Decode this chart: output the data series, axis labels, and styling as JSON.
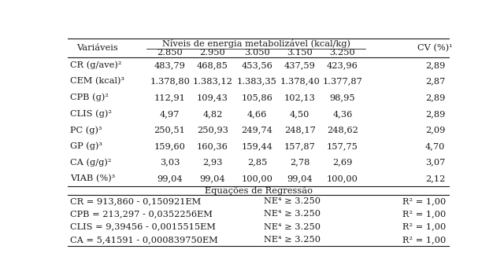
{
  "title_header": "Níveis de energia metabolizável (kcal/kg)",
  "col_header_1": "Variáveis",
  "col_header_cv": "CV (%)¹",
  "energy_levels": [
    "2.850",
    "2.950",
    "3.050",
    "3.150",
    "3.250"
  ],
  "variables": [
    "CR (g/ave)²",
    "CEM (kcal)³",
    "CPB (g)²",
    "CLIS (g)²",
    "PC (g)³",
    "GP (g)³",
    "CA (g/g)²",
    "VIAB (%)³"
  ],
  "data": [
    [
      "483,79",
      "468,85",
      "453,56",
      "437,59",
      "423,96",
      "2,89"
    ],
    [
      "1.378,80",
      "1.383,12",
      "1.383,35",
      "1.378,40",
      "1.377,87",
      "2,87"
    ],
    [
      "112,91",
      "109,43",
      "105,86",
      "102,13",
      "98,95",
      "2,89"
    ],
    [
      "4,97",
      "4,82",
      "4,66",
      "4,50",
      "4,36",
      "2,89"
    ],
    [
      "250,51",
      "250,93",
      "249,74",
      "248,17",
      "248,62",
      "2,09"
    ],
    [
      "159,60",
      "160,36",
      "159,44",
      "157,87",
      "157,75",
      "4,70"
    ],
    [
      "3,03",
      "2,93",
      "2,85",
      "2,78",
      "2,69",
      "3,07"
    ],
    [
      "99,04",
      "99,04",
      "100,00",
      "99,04",
      "100,00",
      "2,12"
    ]
  ],
  "regression_title": "Equações de Regressão",
  "regression_rows": [
    [
      "CR = 913,860 - 0,150921EM",
      "NE⁴ ≥ 3.250",
      "R² = 1,00"
    ],
    [
      "CPB = 213,297 - 0,0352256EM",
      "NE⁴ ≥ 3.250",
      "R² = 1,00"
    ],
    [
      "CLIS = 9,39456 - 0,0015515EM",
      "NE⁴ ≥ 3.250",
      "R² = 1,00"
    ],
    [
      "CA = 5,41591 - 0,000839750EM",
      "NE⁴ ≥ 3.250",
      "R² = 1,00"
    ]
  ],
  "bg_color": "#ffffff",
  "text_color": "#1a1a1a",
  "font_size": 8.2,
  "lw": 0.8
}
